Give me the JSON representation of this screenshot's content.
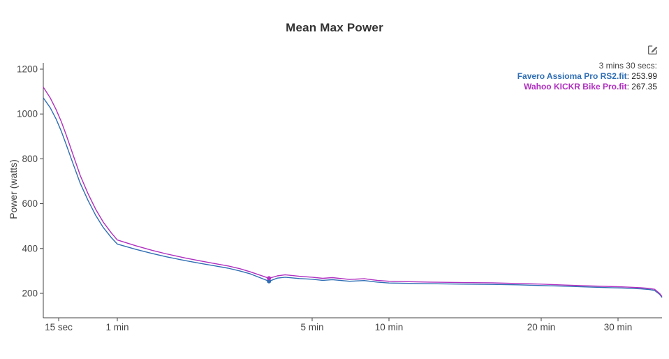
{
  "chart": {
    "title": "Mean Max Power",
    "ylabel": "Power (watts)"
  },
  "icons": {
    "edit_chart": "pencil-square"
  },
  "tooltip": {
    "time_label": "3 mins 30 secs:",
    "separator": ": ",
    "entries": [
      {
        "name": "Favero Assioma Pro RS2.fit",
        "value": "253.99",
        "color": "#2f6eb4"
      },
      {
        "name": "Wahoo KICKR Bike Pro.fit",
        "value": "267.35",
        "color": "#b02fc0"
      }
    ]
  },
  "chart_data": {
    "type": "line",
    "title": "Mean Max Power",
    "xlabel": "",
    "ylabel": "Power (watts)",
    "x_scale": "log-time",
    "x_range_seconds": [
      10,
      2700
    ],
    "ylim": [
      90,
      1230
    ],
    "grid": false,
    "legend_position": "none",
    "y_ticks": [
      200,
      400,
      600,
      800,
      1000,
      1200
    ],
    "x_ticks": [
      {
        "seconds": 15,
        "label": "15 sec"
      },
      {
        "seconds": 60,
        "label": "1 min"
      },
      {
        "seconds": 300,
        "label": "5 min"
      },
      {
        "seconds": 600,
        "label": "10 min"
      },
      {
        "seconds": 1200,
        "label": "20 min"
      },
      {
        "seconds": 1800,
        "label": "30 min"
      }
    ],
    "x_seconds": [
      10,
      12,
      14,
      16,
      18,
      21,
      25,
      30,
      36,
      43,
      52,
      60,
      70,
      80,
      90,
      105,
      120,
      135,
      150,
      165,
      180,
      210,
      225,
      240,
      270,
      300,
      330,
      360,
      420,
      480,
      540,
      600,
      720,
      840,
      960,
      1080,
      1200,
      1350,
      1500,
      1680,
      1860,
      2040,
      2220,
      2400,
      2520,
      2640,
      2700
    ],
    "series": [
      {
        "name": "Favero Assioma Pro RS2.fit",
        "color": "#2f6eb4",
        "values": [
          1072,
          1028,
          978,
          922,
          862,
          780,
          690,
          615,
          548,
          494,
          449,
          420,
          396,
          378,
          363,
          346,
          333,
          322,
          312,
          300,
          287,
          253.99,
          268,
          272,
          266,
          263,
          258,
          261,
          254,
          257,
          250,
          246,
          243,
          241,
          240,
          238,
          235,
          232,
          229,
          226,
          224,
          222,
          220,
          217,
          213,
          196,
          182
        ]
      },
      {
        "name": "Wahoo KICKR Bike Pro.fit",
        "color": "#b02fc0",
        "values": [
          1120,
          1072,
          1020,
          965,
          905,
          820,
          725,
          645,
          575,
          518,
          470,
          438,
          412,
          392,
          376,
          358,
          344,
          332,
          322,
          310,
          296,
          267.35,
          278,
          283,
          276,
          272,
          267,
          270,
          262,
          265,
          258,
          254,
          250,
          248,
          247,
          244,
          241,
          237,
          234,
          231,
          229,
          227,
          225,
          222,
          218,
          200,
          186
        ]
      }
    ],
    "marker": {
      "seconds": 210,
      "values": [
        253.99,
        267.35
      ]
    }
  }
}
